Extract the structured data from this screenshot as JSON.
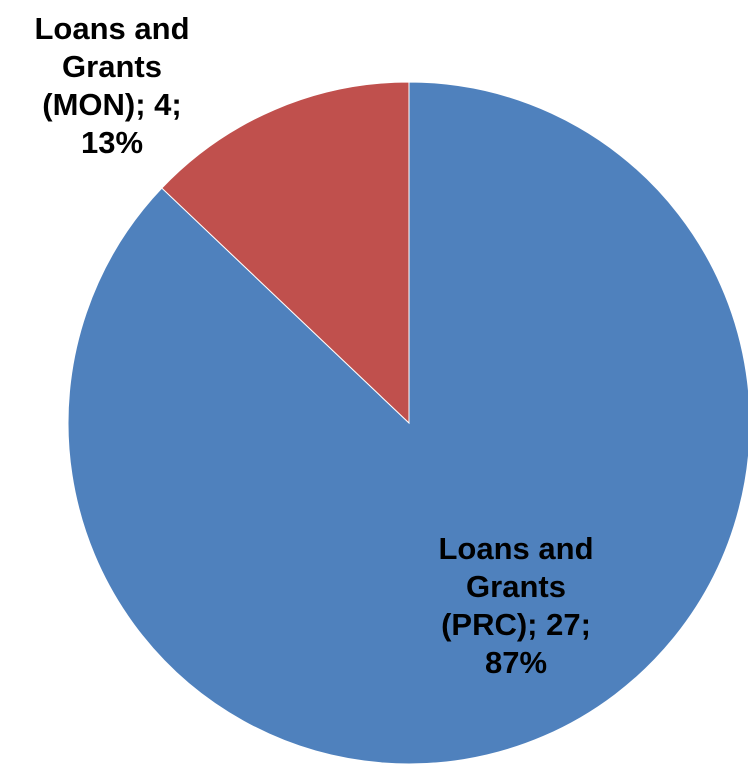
{
  "chart_data": {
    "type": "pie",
    "title": "",
    "slices": [
      {
        "label": "Loans and Grants (PRC)",
        "value": 27,
        "percent": 87,
        "color": "#4F81BD",
        "label_lines": [
          "Loans and",
          "Grants",
          "(PRC);  27;",
          "87%"
        ]
      },
      {
        "label": "Loans and Grants (MON)",
        "value": 4,
        "percent": 13,
        "color": "#C0504D",
        "label_lines": [
          "Loans and",
          "Grants",
          "(MON);  4;",
          "13%"
        ]
      }
    ],
    "start_angle_deg": 0,
    "direction": "clockwise",
    "legend": "none"
  }
}
